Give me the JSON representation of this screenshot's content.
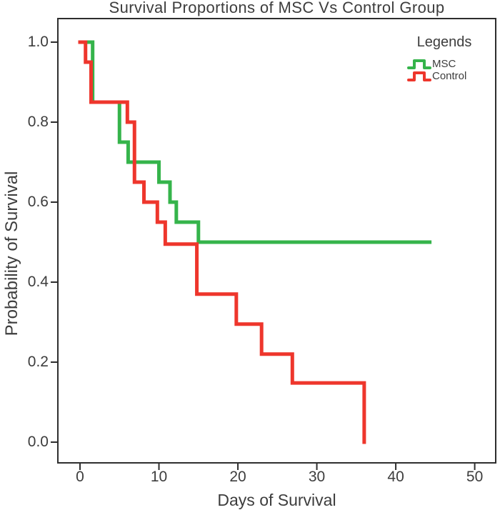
{
  "title": "Survival Proportions of MSC Vs Control Group",
  "colors": {
    "msc_green": "#35b44b",
    "control_red": "#ee362c",
    "axis": "#2e2e2e",
    "text": "#3d3d3d",
    "background": "#ffffff"
  },
  "legend": {
    "title": "Legends",
    "items": [
      {
        "label": "MSC",
        "color": "#35b44b"
      },
      {
        "label": "Control",
        "color": "#ee362c"
      }
    ]
  },
  "chart_data": {
    "type": "line",
    "subtype": "kaplan-meier-survival-step",
    "title": "Survival Proportions of MSC Vs Control Group",
    "xlabel": "Days of Survival",
    "ylabel": "Probability of Survival",
    "xlim": [
      0,
      50
    ],
    "ylim": [
      0.0,
      1.0
    ],
    "grid": false,
    "legend_position": "top-right-inside",
    "x_ticks": [
      0,
      10,
      20,
      30,
      40,
      50
    ],
    "x_tick_labels": [
      "0",
      "10",
      "20",
      "30",
      "40",
      "50"
    ],
    "y_ticks": [
      0.0,
      0.2,
      0.4,
      0.6,
      0.8,
      1.0
    ],
    "y_tick_labels": [
      "0.0",
      "0.2",
      "0.4",
      "0.6",
      "0.8",
      "1.0"
    ],
    "series": [
      {
        "name": "MSC",
        "color": "#35b44b",
        "steps": [
          [
            0,
            1.0
          ],
          [
            1.6,
            0.85
          ],
          [
            5.0,
            0.75
          ],
          [
            6.1,
            0.7
          ],
          [
            10.0,
            0.65
          ],
          [
            11.4,
            0.6
          ],
          [
            12.2,
            0.55
          ],
          [
            15.0,
            0.5
          ]
        ],
        "end_time": 44.3
      },
      {
        "name": "Control",
        "color": "#ee362c",
        "steps": [
          [
            0,
            1.0
          ],
          [
            0.7,
            0.95
          ],
          [
            1.4,
            0.85
          ],
          [
            6.0,
            0.8
          ],
          [
            6.9,
            0.65
          ],
          [
            8.1,
            0.6
          ],
          [
            9.8,
            0.55
          ],
          [
            10.8,
            0.495
          ],
          [
            14.8,
            0.37
          ],
          [
            19.8,
            0.295
          ],
          [
            23.0,
            0.22
          ],
          [
            26.9,
            0.148
          ],
          [
            36.0,
            0.0
          ]
        ],
        "end_time": 36.0
      }
    ]
  }
}
